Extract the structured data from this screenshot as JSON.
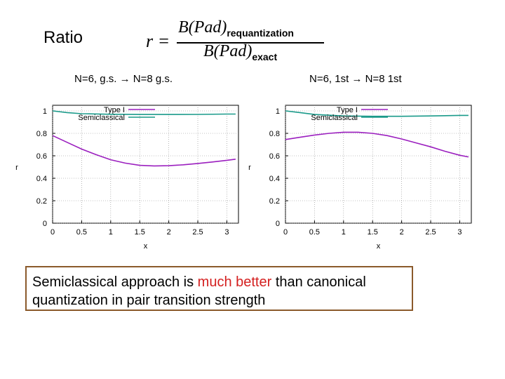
{
  "slide": {
    "title": "Ratio",
    "formula": {
      "lhs": "r =",
      "num_main": "B(Pad)",
      "num_sub": "requantization",
      "den_main": "B(Pad)",
      "den_sub": "exact"
    },
    "caption_left": "N=6, g.s.  N=8 g.s.",
    "caption_right": "N=6, 1st  N=8 1st",
    "conclusion": {
      "part1": "Semiclassical approach is ",
      "highlight": "much better",
      "part2": " than canonical quantization in pair transition strength"
    }
  },
  "colors": {
    "type1": "#9b1fbf",
    "semiclassical": "#1a9a8a",
    "highlight": "#d41f1f",
    "border": "#8B5A2B"
  },
  "chart_data": [
    {
      "type": "line",
      "title": "",
      "xlabel": "x",
      "ylabel": "r",
      "xlim": [
        0,
        3.2
      ],
      "ylim": [
        0,
        1.05
      ],
      "xticks": [
        "0",
        "0.5",
        "1",
        "1.5",
        "2",
        "2.5",
        "3"
      ],
      "yticks": [
        "0",
        "0.2",
        "0.4",
        "0.6",
        "0.8",
        "1"
      ],
      "legend_position": "top",
      "series": [
        {
          "name": "Type I",
          "color_key": "type1",
          "x": [
            0,
            0.25,
            0.5,
            0.75,
            1.0,
            1.25,
            1.5,
            1.75,
            2.0,
            2.25,
            2.5,
            2.75,
            3.0,
            3.15
          ],
          "y": [
            0.78,
            0.72,
            0.66,
            0.61,
            0.565,
            0.535,
            0.515,
            0.51,
            0.512,
            0.52,
            0.532,
            0.545,
            0.56,
            0.57
          ]
        },
        {
          "name": "Semiclassical",
          "color_key": "semiclassical",
          "x": [
            0,
            0.25,
            0.5,
            1.0,
            1.5,
            2.0,
            2.5,
            3.0,
            3.15
          ],
          "y": [
            1.0,
            0.985,
            0.975,
            0.97,
            0.968,
            0.968,
            0.969,
            0.972,
            0.972
          ]
        }
      ]
    },
    {
      "type": "line",
      "title": "",
      "xlabel": "x",
      "ylabel": "r",
      "xlim": [
        0,
        3.2
      ],
      "ylim": [
        0,
        1.05
      ],
      "xticks": [
        "0",
        "0.5",
        "1",
        "1.5",
        "2",
        "2.5",
        "3"
      ],
      "yticks": [
        "0",
        "0.2",
        "0.4",
        "0.6",
        "0.8",
        "1"
      ],
      "legend_position": "top",
      "series": [
        {
          "name": "Type I",
          "color_key": "type1",
          "x": [
            0,
            0.25,
            0.5,
            0.75,
            1.0,
            1.25,
            1.5,
            1.75,
            2.0,
            2.25,
            2.5,
            2.75,
            3.0,
            3.15
          ],
          "y": [
            0.745,
            0.765,
            0.785,
            0.8,
            0.81,
            0.81,
            0.8,
            0.78,
            0.75,
            0.715,
            0.68,
            0.64,
            0.605,
            0.59
          ]
        },
        {
          "name": "Semiclassical",
          "color_key": "semiclassical",
          "x": [
            0,
            0.25,
            0.5,
            1.0,
            1.5,
            2.0,
            2.5,
            3.0,
            3.15
          ],
          "y": [
            1.0,
            0.985,
            0.968,
            0.955,
            0.952,
            0.952,
            0.955,
            0.96,
            0.96
          ]
        }
      ]
    }
  ]
}
